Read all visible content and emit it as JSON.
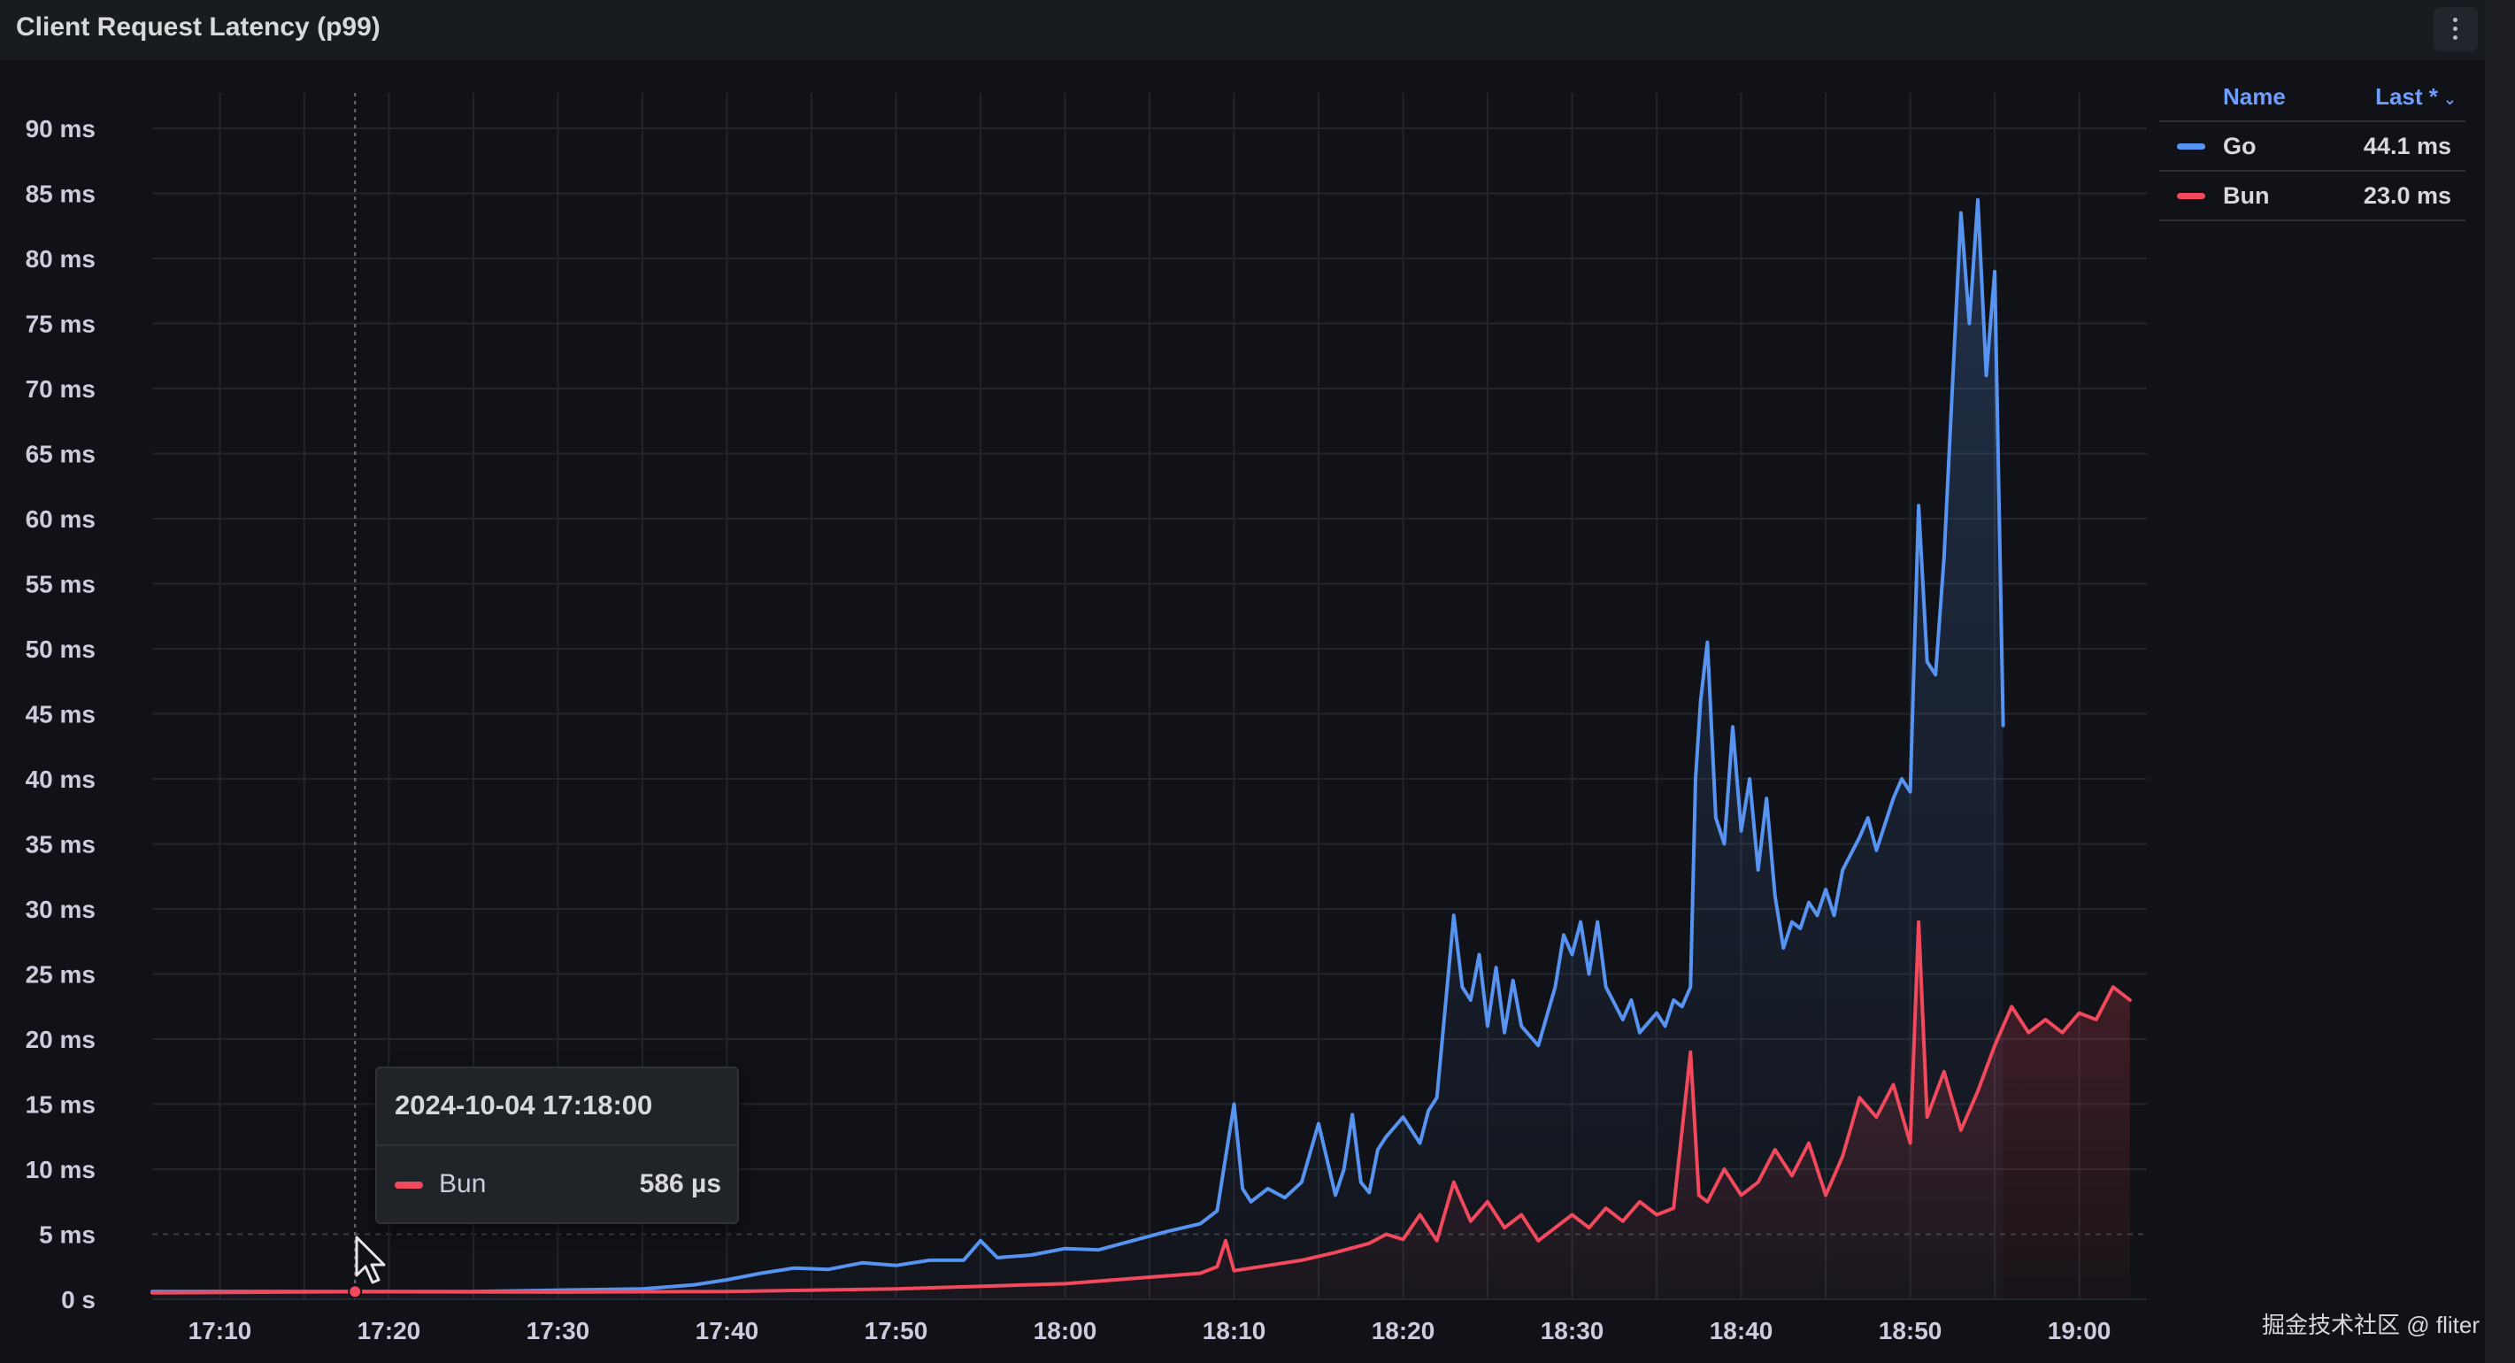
{
  "panel": {
    "title": "Client Request Latency (p99)",
    "menu_icon": "kebab-menu-icon"
  },
  "colors": {
    "background": "#111217",
    "go": "#5794f2",
    "bun": "#f2495c",
    "legend_header": "#6e9fff"
  },
  "legend": {
    "header_name": "Name",
    "header_last": "Last *",
    "sort_icon": "chevron-down-icon",
    "items": [
      {
        "name": "Go",
        "last": "44.1 ms"
      },
      {
        "name": "Bun",
        "last": "23.0 ms"
      }
    ]
  },
  "tooltip": {
    "time": "2024-10-04 17:18:00",
    "series": "Bun",
    "value": "586 µs"
  },
  "watermark": "掘金技术社区 @ fliter",
  "chart_data": {
    "type": "line",
    "title": "Client Request Latency (p99)",
    "xlabel": "",
    "ylabel": "",
    "x_range": [
      "17:06",
      "19:04"
    ],
    "ylim": [
      0,
      90
    ],
    "y_unit": "ms",
    "x_ticks": [
      "17:10",
      "17:20",
      "17:30",
      "17:40",
      "17:50",
      "18:00",
      "18:10",
      "18:20",
      "18:30",
      "18:40",
      "18:50",
      "19:00"
    ],
    "y_ticks": [
      {
        "value": 0,
        "label": "0 s"
      },
      {
        "value": 5,
        "label": "5 ms"
      },
      {
        "value": 10,
        "label": "10 ms"
      },
      {
        "value": 15,
        "label": "15 ms"
      },
      {
        "value": 20,
        "label": "20 ms"
      },
      {
        "value": 25,
        "label": "25 ms"
      },
      {
        "value": 30,
        "label": "30 ms"
      },
      {
        "value": 35,
        "label": "35 ms"
      },
      {
        "value": 40,
        "label": "40 ms"
      },
      {
        "value": 45,
        "label": "45 ms"
      },
      {
        "value": 50,
        "label": "50 ms"
      },
      {
        "value": 55,
        "label": "55 ms"
      },
      {
        "value": 60,
        "label": "60 ms"
      },
      {
        "value": 65,
        "label": "65 ms"
      },
      {
        "value": 70,
        "label": "70 ms"
      },
      {
        "value": 75,
        "label": "75 ms"
      },
      {
        "value": 80,
        "label": "80 ms"
      },
      {
        "value": 85,
        "label": "85 ms"
      },
      {
        "value": 90,
        "label": "90 ms"
      }
    ],
    "grid": true,
    "legend_position": "top-right",
    "hover": {
      "time": "17:18",
      "series": "Bun",
      "value": 0.586
    },
    "series": [
      {
        "name": "Go",
        "points": [
          [
            "17:06",
            0.6
          ],
          [
            "17:10",
            0.6
          ],
          [
            "17:15",
            0.6
          ],
          [
            "17:20",
            0.6
          ],
          [
            "17:25",
            0.6
          ],
          [
            "17:30",
            0.7
          ],
          [
            "17:35",
            0.8
          ],
          [
            "17:38",
            1.1
          ],
          [
            "17:40",
            1.5
          ],
          [
            "17:42",
            2.0
          ],
          [
            "17:44",
            2.4
          ],
          [
            "17:46",
            2.3
          ],
          [
            "17:48",
            2.8
          ],
          [
            "17:50",
            2.6
          ],
          [
            "17:52",
            3.0
          ],
          [
            "17:54",
            3.0
          ],
          [
            "17:55",
            4.5
          ],
          [
            "17:56",
            3.2
          ],
          [
            "17:58",
            3.4
          ],
          [
            "18:00",
            3.9
          ],
          [
            "18:02",
            3.8
          ],
          [
            "18:04",
            4.5
          ],
          [
            "18:06",
            5.2
          ],
          [
            "18:08",
            5.8
          ],
          [
            "18:09",
            6.8
          ],
          [
            "18:10",
            15.0
          ],
          [
            "18:10.5",
            8.5
          ],
          [
            "18:11",
            7.5
          ],
          [
            "18:12",
            8.5
          ],
          [
            "18:13",
            7.8
          ],
          [
            "18:14",
            9.0
          ],
          [
            "18:15",
            13.5
          ],
          [
            "18:16",
            8.0
          ],
          [
            "18:16.5",
            10.0
          ],
          [
            "18:17",
            14.2
          ],
          [
            "18:17.5",
            9.0
          ],
          [
            "18:18",
            8.2
          ],
          [
            "18:18.5",
            11.5
          ],
          [
            "18:19",
            12.5
          ],
          [
            "18:20",
            14.0
          ],
          [
            "18:21",
            12.0
          ],
          [
            "18:21.5",
            14.5
          ],
          [
            "18:22",
            15.5
          ],
          [
            "18:23",
            29.5
          ],
          [
            "18:23.5",
            24.0
          ],
          [
            "18:24",
            23.0
          ],
          [
            "18:24.5",
            26.5
          ],
          [
            "18:25",
            21.0
          ],
          [
            "18:25.5",
            25.5
          ],
          [
            "18:26",
            20.5
          ],
          [
            "18:26.5",
            24.5
          ],
          [
            "18:27",
            21.0
          ],
          [
            "18:28",
            19.5
          ],
          [
            "18:29",
            24.0
          ],
          [
            "18:29.5",
            28.0
          ],
          [
            "18:30",
            26.5
          ],
          [
            "18:30.5",
            29.0
          ],
          [
            "18:31",
            25.0
          ],
          [
            "18:31.5",
            29.0
          ],
          [
            "18:32",
            24.0
          ],
          [
            "18:33",
            21.5
          ],
          [
            "18:33.5",
            23.0
          ],
          [
            "18:34",
            20.5
          ],
          [
            "18:35",
            22.0
          ],
          [
            "18:35.5",
            21.0
          ],
          [
            "18:36",
            23.0
          ],
          [
            "18:36.5",
            22.5
          ],
          [
            "18:37",
            24.0
          ],
          [
            "18:37.3",
            40.0
          ],
          [
            "18:37.6",
            46.0
          ],
          [
            "18:38",
            50.5
          ],
          [
            "18:38.5",
            37.0
          ],
          [
            "18:39",
            35.0
          ],
          [
            "18:39.5",
            44.0
          ],
          [
            "18:40",
            36.0
          ],
          [
            "18:40.5",
            40.0
          ],
          [
            "18:41",
            33.0
          ],
          [
            "18:41.5",
            38.5
          ],
          [
            "18:42",
            31.0
          ],
          [
            "18:42.5",
            27.0
          ],
          [
            "18:43",
            29.0
          ],
          [
            "18:43.5",
            28.5
          ],
          [
            "18:44",
            30.5
          ],
          [
            "18:44.5",
            29.5
          ],
          [
            "18:45",
            31.5
          ],
          [
            "18:45.5",
            29.5
          ],
          [
            "18:46",
            33.0
          ],
          [
            "18:47",
            35.5
          ],
          [
            "18:47.5",
            37.0
          ],
          [
            "18:48",
            34.5
          ],
          [
            "18:49",
            38.5
          ],
          [
            "18:49.5",
            40.0
          ],
          [
            "18:50",
            39.0
          ],
          [
            "18:50.5",
            61.0
          ],
          [
            "18:51",
            49.0
          ],
          [
            "18:51.5",
            48.0
          ],
          [
            "18:52",
            57.0
          ],
          [
            "18:53",
            83.5
          ],
          [
            "18:53.5",
            75.0
          ],
          [
            "18:54",
            84.5
          ],
          [
            "18:54.5",
            71.0
          ],
          [
            "18:55",
            79.0
          ],
          [
            "18:55.5",
            44.1
          ]
        ]
      },
      {
        "name": "Bun",
        "points": [
          [
            "17:06",
            0.5
          ],
          [
            "17:18",
            0.586
          ],
          [
            "17:30",
            0.55
          ],
          [
            "17:40",
            0.6
          ],
          [
            "17:50",
            0.8
          ],
          [
            "18:00",
            1.2
          ],
          [
            "18:04",
            1.6
          ],
          [
            "18:08",
            2.0
          ],
          [
            "18:09",
            2.5
          ],
          [
            "18:09.5",
            4.5
          ],
          [
            "18:10",
            2.2
          ],
          [
            "18:12",
            2.6
          ],
          [
            "18:14",
            3.0
          ],
          [
            "18:16",
            3.6
          ],
          [
            "18:18",
            4.3
          ],
          [
            "18:19",
            5.0
          ],
          [
            "18:20",
            4.6
          ],
          [
            "18:21",
            6.5
          ],
          [
            "18:22",
            4.5
          ],
          [
            "18:23",
            9.0
          ],
          [
            "18:24",
            6.0
          ],
          [
            "18:25",
            7.5
          ],
          [
            "18:26",
            5.5
          ],
          [
            "18:27",
            6.5
          ],
          [
            "18:28",
            4.5
          ],
          [
            "18:29",
            5.5
          ],
          [
            "18:30",
            6.5
          ],
          [
            "18:31",
            5.5
          ],
          [
            "18:32",
            7.0
          ],
          [
            "18:33",
            6.0
          ],
          [
            "18:34",
            7.5
          ],
          [
            "18:35",
            6.5
          ],
          [
            "18:36",
            7.0
          ],
          [
            "18:37",
            19.0
          ],
          [
            "18:37.5",
            8.0
          ],
          [
            "18:38",
            7.5
          ],
          [
            "18:39",
            10.0
          ],
          [
            "18:40",
            8.0
          ],
          [
            "18:41",
            9.0
          ],
          [
            "18:42",
            11.5
          ],
          [
            "18:43",
            9.5
          ],
          [
            "18:44",
            12.0
          ],
          [
            "18:45",
            8.0
          ],
          [
            "18:46",
            11.0
          ],
          [
            "18:47",
            15.5
          ],
          [
            "18:48",
            14.0
          ],
          [
            "18:49",
            16.5
          ],
          [
            "18:50",
            12.0
          ],
          [
            "18:50.5",
            29.0
          ],
          [
            "18:51",
            14.0
          ],
          [
            "18:52",
            17.5
          ],
          [
            "18:53",
            13.0
          ],
          [
            "18:54",
            16.0
          ],
          [
            "18:55",
            19.5
          ],
          [
            "18:56",
            22.5
          ],
          [
            "18:57",
            20.5
          ],
          [
            "18:58",
            21.5
          ],
          [
            "18:59",
            20.5
          ],
          [
            "19:00",
            22.0
          ],
          [
            "19:01",
            21.5
          ],
          [
            "19:02",
            24.0
          ],
          [
            "19:03",
            23.0
          ]
        ]
      }
    ]
  }
}
